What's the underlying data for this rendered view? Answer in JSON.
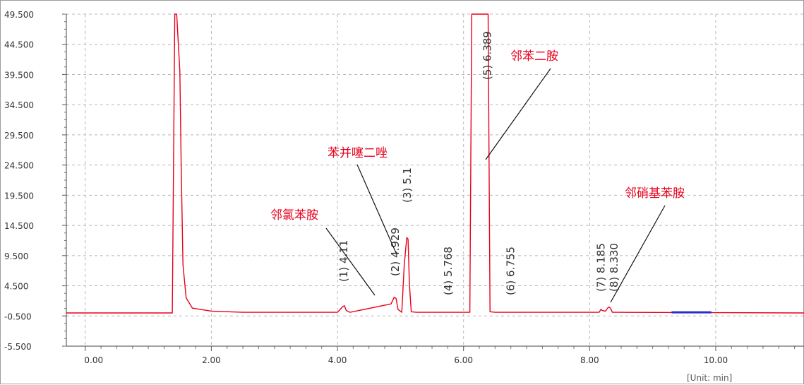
{
  "chart_data": {
    "type": "line",
    "title": "",
    "xlabel": "",
    "ylabel": "",
    "xlim": [
      -0.3,
      11.4
    ],
    "ylim": [
      -5.5,
      49.5
    ],
    "x_ticks": [
      "0.00",
      "2.00",
      "4.00",
      "6.00",
      "8.00",
      "10.00"
    ],
    "x_tick_values": [
      0,
      2,
      4,
      6,
      8,
      10
    ],
    "y_ticks": [
      "49.500",
      "44.500",
      "39.500",
      "34.500",
      "29.500",
      "24.500",
      "19.500",
      "14.500",
      "9.500",
      "4.500",
      "-0.500",
      "-5.500"
    ],
    "y_tick_values": [
      49.5,
      44.5,
      39.5,
      34.5,
      29.5,
      24.5,
      19.5,
      14.5,
      9.5,
      4.5,
      -0.5,
      -5.5
    ],
    "grid": true,
    "unit_label": "[Unit: min]",
    "series": [
      {
        "color": "#e8001c",
        "x": [
          -0.3,
          1.3,
          1.38,
          1.42,
          1.45,
          1.5,
          1.52,
          1.55,
          1.6,
          1.7,
          2.0,
          2.5,
          4.0,
          4.08,
          4.11,
          4.14,
          4.2,
          4.85,
          4.9,
          4.93,
          4.96,
          5.02,
          5.06,
          5.1,
          5.12,
          5.14,
          5.17,
          5.25,
          6.1,
          6.13,
          6.16,
          6.36,
          6.39,
          6.42,
          6.5,
          8.15,
          8.18,
          8.2,
          8.25,
          8.3,
          8.33,
          8.36,
          8.45,
          11.4
        ],
        "y": [
          0,
          0,
          0,
          49.5,
          49.5,
          40,
          25,
          8,
          2.5,
          0.8,
          0.3,
          0.1,
          0.1,
          1,
          1.2,
          0.4,
          0.1,
          1.5,
          2.6,
          2.4,
          0.6,
          0.1,
          8,
          12.5,
          12.2,
          5,
          0.2,
          0.1,
          0.1,
          49.5,
          49.5,
          49.5,
          49.5,
          0.2,
          0.1,
          0.1,
          0.6,
          0.4,
          0.3,
          1,
          0.8,
          0.1,
          0.1,
          0
        ]
      },
      {
        "color": "#2b2bd0",
        "x": [
          9.3,
          9.93
        ],
        "y": [
          0.1,
          0.1
        ]
      }
    ],
    "peak_labels": [
      {
        "text": "(1) 4.11",
        "x": 4.11
      },
      {
        "text": "(2) 4.929",
        "x": 4.93
      },
      {
        "text": "(3) 5.1",
        "x": 5.12
      },
      {
        "text": "(4) 5.768",
        "x": 5.77
      },
      {
        "text": "(5) 6.389",
        "x": 6.39
      },
      {
        "text": "(6) 6.755",
        "x": 6.76
      },
      {
        "text": "(7) 8.185",
        "x": 8.19
      },
      {
        "text": "(8) 8.330",
        "x": 8.33
      }
    ],
    "annotations": [
      {
        "text": "邻氯苯胺",
        "color": "#e8001c"
      },
      {
        "text": "苯并噻二唑",
        "color": "#e8001c"
      },
      {
        "text": "邻苯二胺",
        "color": "#e8001c"
      },
      {
        "text": "邻硝基苯胺",
        "color": "#e8001c"
      }
    ]
  }
}
